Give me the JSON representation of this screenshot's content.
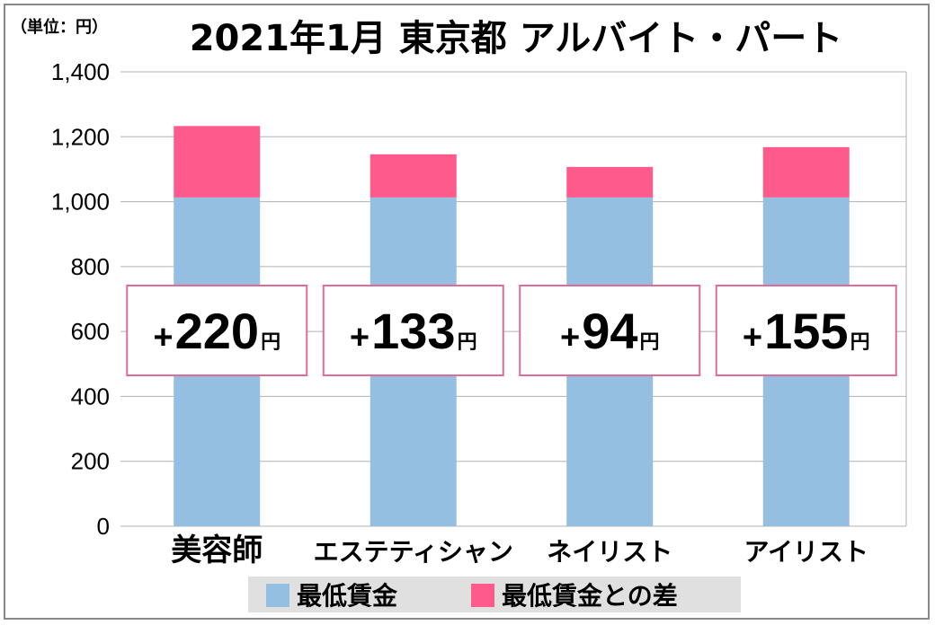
{
  "chart_data": {
    "type": "bar",
    "stacked": true,
    "title": "2021年1月 東京都 アルバイト・パート",
    "unit_label": "（単位：円）",
    "categories": [
      "美容師",
      "エステティシャン",
      "ネイリスト",
      "アイリスト"
    ],
    "series": [
      {
        "name": "最低賃金",
        "color": "#94bfe0",
        "values": [
          1013,
          1013,
          1013,
          1013
        ]
      },
      {
        "name": "最低賃金との差",
        "color": "#ff5a8c",
        "values": [
          220,
          133,
          94,
          155
        ]
      }
    ],
    "badges": [
      {
        "sign": "+",
        "value": "220",
        "unit": "円"
      },
      {
        "sign": "+",
        "value": "133",
        "unit": "円"
      },
      {
        "sign": "+",
        "value": "94",
        "unit": "円"
      },
      {
        "sign": "+",
        "value": "155",
        "unit": "円"
      }
    ],
    "ylim": [
      0,
      1400
    ],
    "yticks": [
      0,
      200,
      400,
      600,
      800,
      1000,
      1200,
      1400
    ],
    "ytick_labels": [
      "0",
      "200",
      "400",
      "600",
      "800",
      "1,000",
      "1,200",
      "1,400"
    ],
    "grid": true,
    "legend_position": "bottom"
  }
}
